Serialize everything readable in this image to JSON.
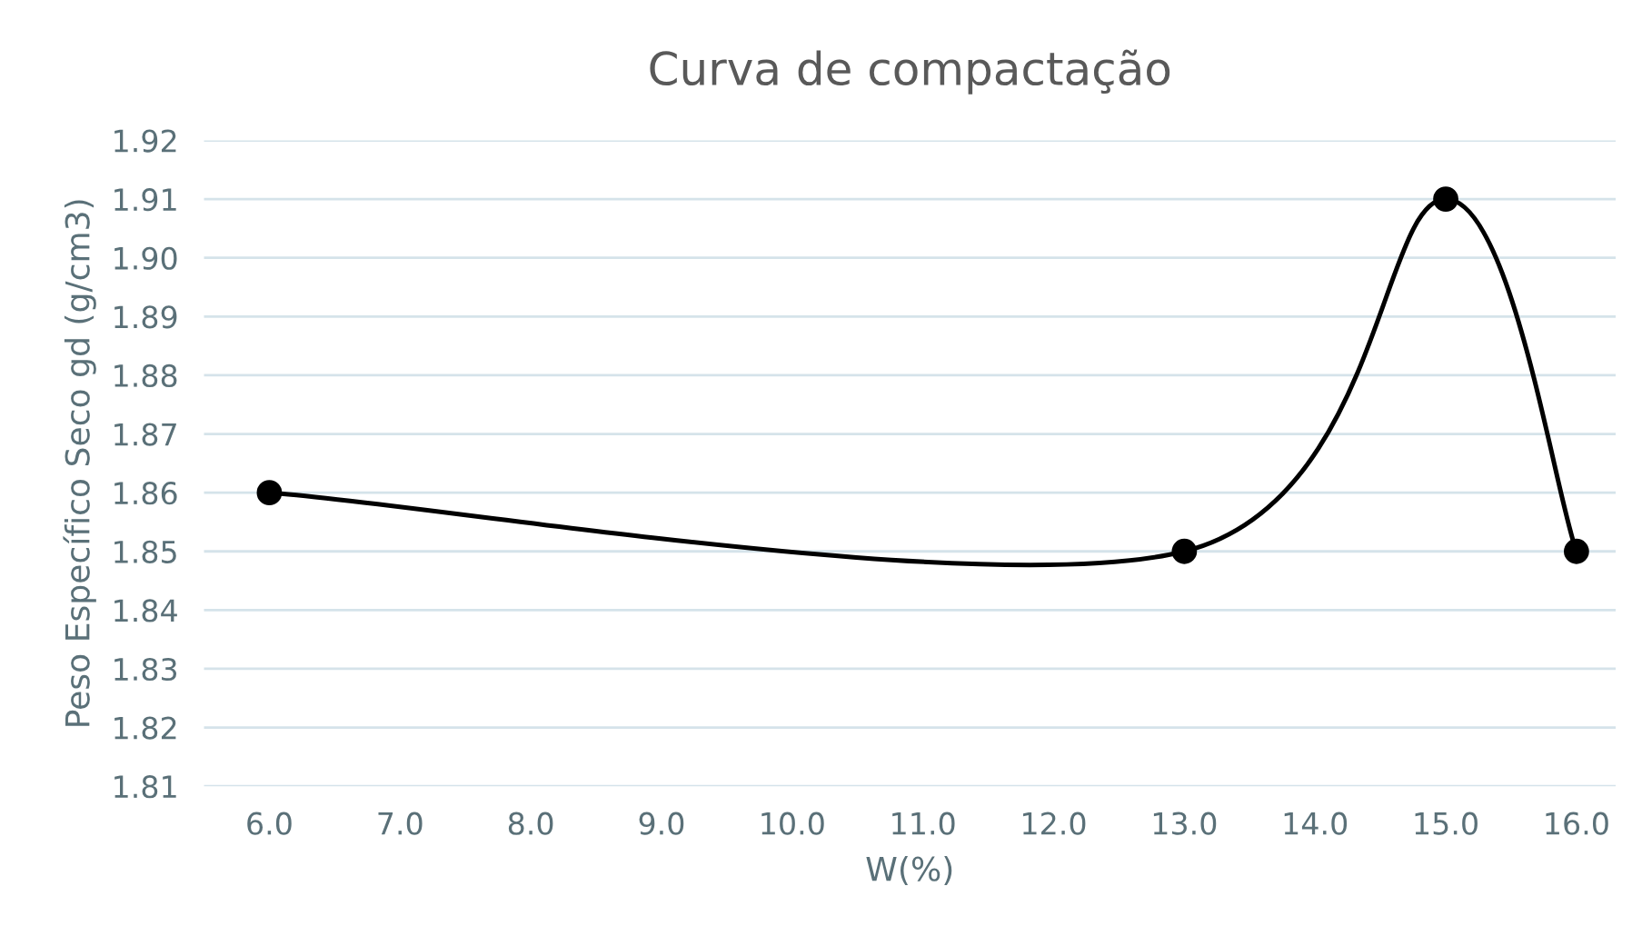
{
  "chart_data": {
    "type": "line",
    "title": "Curva de compactação",
    "xlabel": "W(%)",
    "ylabel": "Peso Específico Seco gd (g/cm3)",
    "x": [
      6,
      13,
      15,
      16
    ],
    "series": [
      {
        "color": "#000000",
        "values": [
          1.86,
          1.85,
          1.91,
          1.85
        ]
      }
    ],
    "marker": "circle",
    "line_style": "solid",
    "grid": "y",
    "xlim": [
      5.5,
      16.3
    ],
    "ylim": [
      1.81,
      1.92
    ],
    "xticks": [
      {
        "value": 6,
        "label": "6.0"
      },
      {
        "value": 7,
        "label": "7.0"
      },
      {
        "value": 8,
        "label": "8.0"
      },
      {
        "value": 9,
        "label": "9.0"
      },
      {
        "value": 10,
        "label": "10.0"
      },
      {
        "value": 11,
        "label": "11.0"
      },
      {
        "value": 12,
        "label": "12.0"
      },
      {
        "value": 13,
        "label": "13.0"
      },
      {
        "value": 14,
        "label": "14.0"
      },
      {
        "value": 15,
        "label": "15.0"
      },
      {
        "value": 16,
        "label": "16.0"
      }
    ],
    "yticks": [
      {
        "value": 1.81,
        "label": "1.81"
      },
      {
        "value": 1.82,
        "label": "1.82"
      },
      {
        "value": 1.83,
        "label": "1.83"
      },
      {
        "value": 1.84,
        "label": "1.84"
      },
      {
        "value": 1.85,
        "label": "1.85"
      },
      {
        "value": 1.86,
        "label": "1.86"
      },
      {
        "value": 1.87,
        "label": "1.87"
      },
      {
        "value": 1.88,
        "label": "1.88"
      },
      {
        "value": 1.89,
        "label": "1.89"
      },
      {
        "value": 1.9,
        "label": "1.90"
      },
      {
        "value": 1.91,
        "label": "1.91"
      },
      {
        "value": 1.92,
        "label": "1.92"
      }
    ]
  }
}
